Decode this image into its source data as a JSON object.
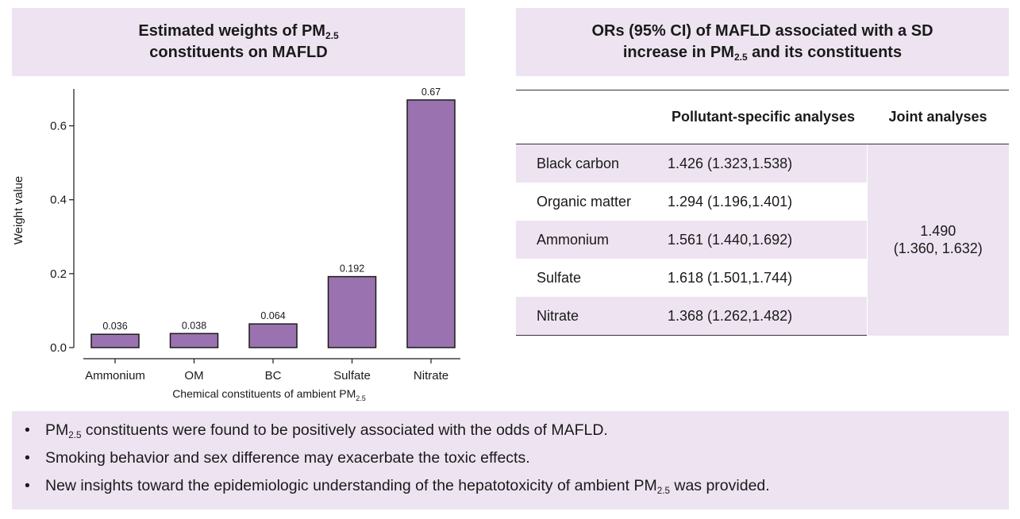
{
  "left_panel": {
    "title_line1": "Estimated weights of PM",
    "title_sub": "2.5",
    "title_line2": "constituents on MAFLD"
  },
  "chart_data": {
    "type": "bar",
    "categories": [
      "Ammonium",
      "OM",
      "BC",
      "Sulfate",
      "Nitrate"
    ],
    "values": [
      0.036,
      0.038,
      0.064,
      0.192,
      0.67
    ],
    "value_labels": [
      "0.036",
      "0.038",
      "0.064",
      "0.192",
      "0.67"
    ],
    "ylabel": "Weight value",
    "xlabel": "Chemical constituents of ambient PM",
    "xlabel_sub": "2.5",
    "yticks": [
      0.0,
      0.2,
      0.4,
      0.6
    ],
    "ytick_labels": [
      "0.0",
      "0.2",
      "0.4",
      "0.6"
    ],
    "ylim": [
      0,
      0.7
    ],
    "bar_color": "#9b72b0",
    "grid": false
  },
  "right_panel": {
    "title_line1": "ORs (95% CI) of MAFLD associated with a SD",
    "title_line2_pre": "increase in PM",
    "title_sub": "2.5",
    "title_line2_post": " and its constituents",
    "table": {
      "headers": [
        "",
        "Pollutant-specific analyses",
        "Joint analyses"
      ],
      "rows": [
        {
          "name": "Black carbon",
          "value": "1.426 (1.323,1.538)"
        },
        {
          "name": "Organic matter",
          "value": "1.294 (1.196,1.401)"
        },
        {
          "name": "Ammonium",
          "value": "1.561 (1.440,1.692)"
        },
        {
          "name": "Sulfate",
          "value": "1.618 (1.501,1.744)"
        },
        {
          "name": "Nitrate",
          "value": "1.368 (1.262,1.482)"
        }
      ],
      "joint_line1": "1.490",
      "joint_line2": "(1.360, 1.632)"
    }
  },
  "bullets": [
    {
      "pre": "PM",
      "sub": "2.5",
      "post": " constituents were found to be positively associated with the odds of MAFLD."
    },
    {
      "pre": "Smoking behavior and sex difference may exacerbate the toxic effects.",
      "sub": "",
      "post": ""
    },
    {
      "pre": "New insights toward the epidemiologic understanding of the hepatotoxicity of ambient PM",
      "sub": "2.5",
      "post": " was provided."
    }
  ],
  "colors": {
    "panel_bg": "#eee4f1",
    "bar": "#9b72b0"
  }
}
